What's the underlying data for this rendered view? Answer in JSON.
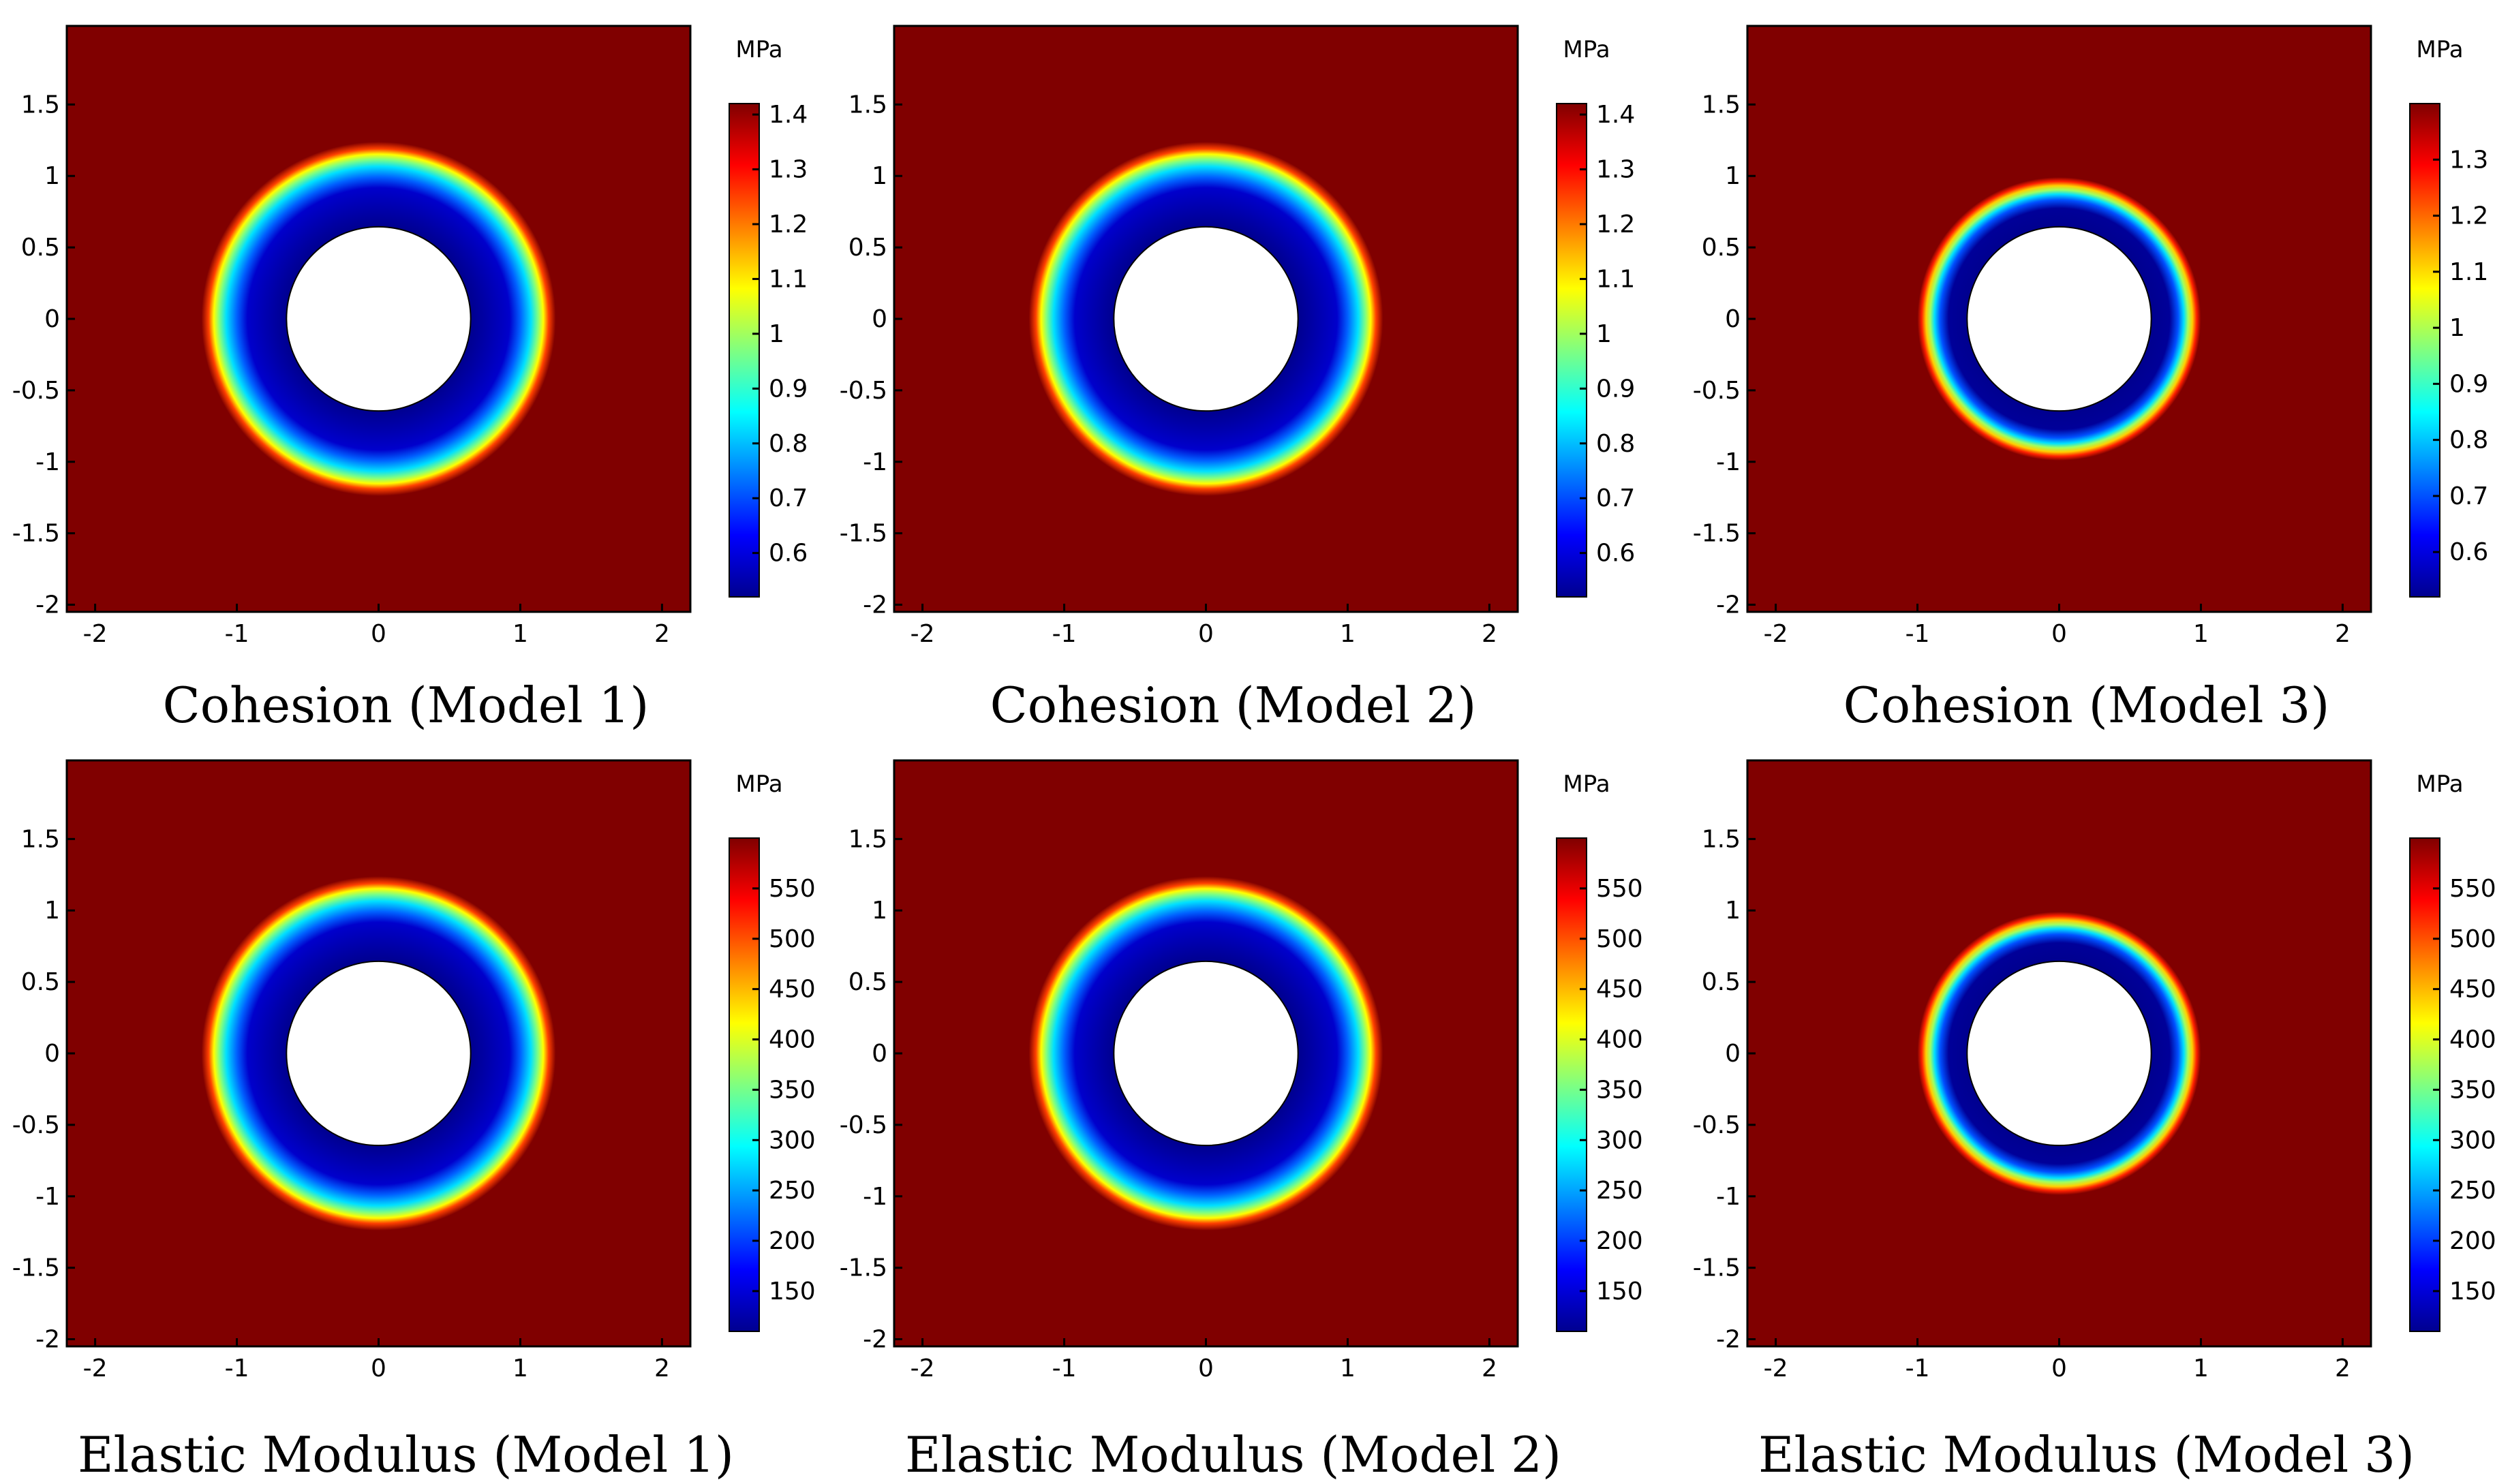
{
  "chart_data": [
    {
      "type": "heatmap",
      "title": "Cohesion (Model 1)",
      "unit": "MPa",
      "x_ticks": [
        "-2",
        "-1",
        "0",
        "1",
        "2"
      ],
      "y_ticks": [
        "1.5",
        "1",
        "0.5",
        "0",
        "-0.5",
        "-1",
        "-1.5",
        "-2"
      ],
      "colorbar_ticks": [
        "1.4",
        "1.3",
        "1.2",
        "1.1",
        "1",
        "0.9",
        "0.8",
        "0.7",
        "0.6"
      ],
      "xlim": [
        -2.2,
        2.2
      ],
      "ylim": [
        -2.05,
        2.05
      ],
      "hole_radius": 0.65,
      "damage_outer_radius": 1.25,
      "value_range": [
        0.52,
        1.42
      ]
    },
    {
      "type": "heatmap",
      "title": "Cohesion (Model 2)",
      "unit": "MPa",
      "x_ticks": [
        "-2",
        "-1",
        "0",
        "1",
        "2"
      ],
      "y_ticks": [
        "1.5",
        "1",
        "0.5",
        "0",
        "-0.5",
        "-1",
        "-1.5",
        "-2"
      ],
      "colorbar_ticks": [
        "1.4",
        "1.3",
        "1.2",
        "1.1",
        "1",
        "0.9",
        "0.8",
        "0.7",
        "0.6"
      ],
      "xlim": [
        -2.2,
        2.2
      ],
      "ylim": [
        -2.05,
        2.05
      ],
      "hole_radius": 0.65,
      "damage_outer_radius": 1.25,
      "value_range": [
        0.52,
        1.42
      ]
    },
    {
      "type": "heatmap",
      "title": "Cohesion (Model 3)",
      "unit": "MPa",
      "x_ticks": [
        "-2",
        "-1",
        "0",
        "1",
        "2"
      ],
      "y_ticks": [
        "1.5",
        "1",
        "0.5",
        "0",
        "-0.5",
        "-1",
        "-1.5",
        "-2"
      ],
      "colorbar_ticks": [
        "1.3",
        "1.2",
        "1.1",
        "1",
        "0.9",
        "0.8",
        "0.7",
        "0.6"
      ],
      "xlim": [
        -2.2,
        2.2
      ],
      "ylim": [
        -2.05,
        2.05
      ],
      "hole_radius": 0.65,
      "damage_outer_radius": 1.0,
      "value_range": [
        0.52,
        1.4
      ]
    },
    {
      "type": "heatmap",
      "title": "Elastic Modulus (Model 1)",
      "unit": "MPa",
      "x_ticks": [
        "-2",
        "-1",
        "0",
        "1",
        "2"
      ],
      "y_ticks": [
        "1.5",
        "1",
        "0.5",
        "0",
        "-0.5",
        "-1",
        "-1.5",
        "-2"
      ],
      "colorbar_ticks": [
        "550",
        "500",
        "450",
        "400",
        "350",
        "300",
        "250",
        "200",
        "150"
      ],
      "xlim": [
        -2.2,
        2.2
      ],
      "ylim": [
        -2.05,
        2.05
      ],
      "hole_radius": 0.65,
      "damage_outer_radius": 1.25,
      "value_range": [
        110,
        600
      ]
    },
    {
      "type": "heatmap",
      "title": "Elastic Modulus (Model 2)",
      "unit": "MPa",
      "x_ticks": [
        "-2",
        "-1",
        "0",
        "1",
        "2"
      ],
      "y_ticks": [
        "1.5",
        "1",
        "0.5",
        "0",
        "-0.5",
        "-1",
        "-1.5",
        "-2"
      ],
      "colorbar_ticks": [
        "550",
        "500",
        "450",
        "400",
        "350",
        "300",
        "250",
        "200",
        "150"
      ],
      "xlim": [
        -2.2,
        2.2
      ],
      "ylim": [
        -2.05,
        2.05
      ],
      "hole_radius": 0.65,
      "damage_outer_radius": 1.25,
      "value_range": [
        110,
        600
      ]
    },
    {
      "type": "heatmap",
      "title": "Elastic Modulus (Model 3)",
      "unit": "MPa",
      "x_ticks": [
        "-2",
        "-1",
        "0",
        "1",
        "2"
      ],
      "y_ticks": [
        "1.5",
        "1",
        "0.5",
        "0",
        "-0.5",
        "-1",
        "-1.5",
        "-2"
      ],
      "colorbar_ticks": [
        "550",
        "500",
        "450",
        "400",
        "350",
        "300",
        "250",
        "200",
        "150"
      ],
      "xlim": [
        -2.2,
        2.2
      ],
      "ylim": [
        -2.05,
        2.05
      ],
      "hole_radius": 0.65,
      "damage_outer_radius": 1.0,
      "value_range": [
        110,
        600
      ]
    }
  ],
  "colors": {
    "background": "#800000",
    "hole": "#ffffff",
    "colormap": "jet"
  }
}
